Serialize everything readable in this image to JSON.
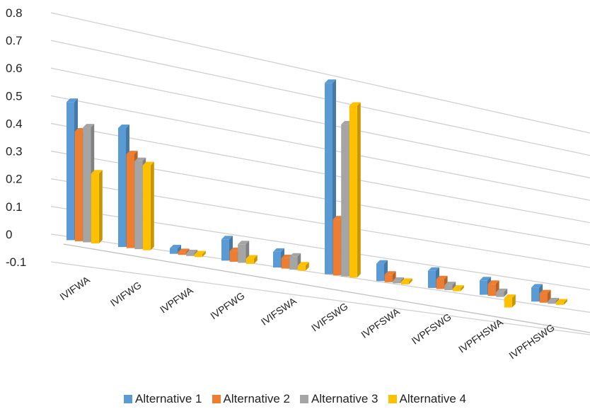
{
  "chart_data": {
    "type": "bar",
    "categories": [
      "IVIFWA",
      "IVIFWG",
      "IVPFWA",
      "IVPFWG",
      "IVIFSWA",
      "IVIFSWG",
      "IVPFSWA",
      "IVPFSWG",
      "IVPFHSWA",
      "IVPFHSWG"
    ],
    "series": [
      {
        "name": "Alternative 1",
        "color": "#5b9bd5",
        "values": [
          0.49,
          0.43,
          0.02,
          0.08,
          0.06,
          0.75,
          0.07,
          0.07,
          0.06,
          0.06
        ]
      },
      {
        "name": "Alternative 2",
        "color": "#ed7d31",
        "values": [
          0.39,
          0.34,
          0.01,
          0.04,
          0.04,
          0.22,
          0.03,
          0.04,
          0.05,
          0.04
        ]
      },
      {
        "name": "Alternative 3",
        "color": "#a5a5a5",
        "values": [
          0.41,
          0.32,
          0.01,
          0.07,
          0.05,
          0.6,
          0.01,
          0.02,
          0.02,
          0.01
        ]
      },
      {
        "name": "Alternative 4",
        "color": "#ffc000",
        "values": [
          0.25,
          0.31,
          0.01,
          0.02,
          0.02,
          0.68,
          0.01,
          0.01,
          -0.04,
          0.01
        ]
      }
    ],
    "yticks": [
      "0.8",
      "0.7",
      "0.6",
      "0.5",
      "0.4",
      "0.3",
      "0.2",
      "0.1",
      "0",
      "-0.1"
    ],
    "ylim": [
      -0.1,
      0.8
    ],
    "grid": true,
    "legend_position": "bottom"
  }
}
